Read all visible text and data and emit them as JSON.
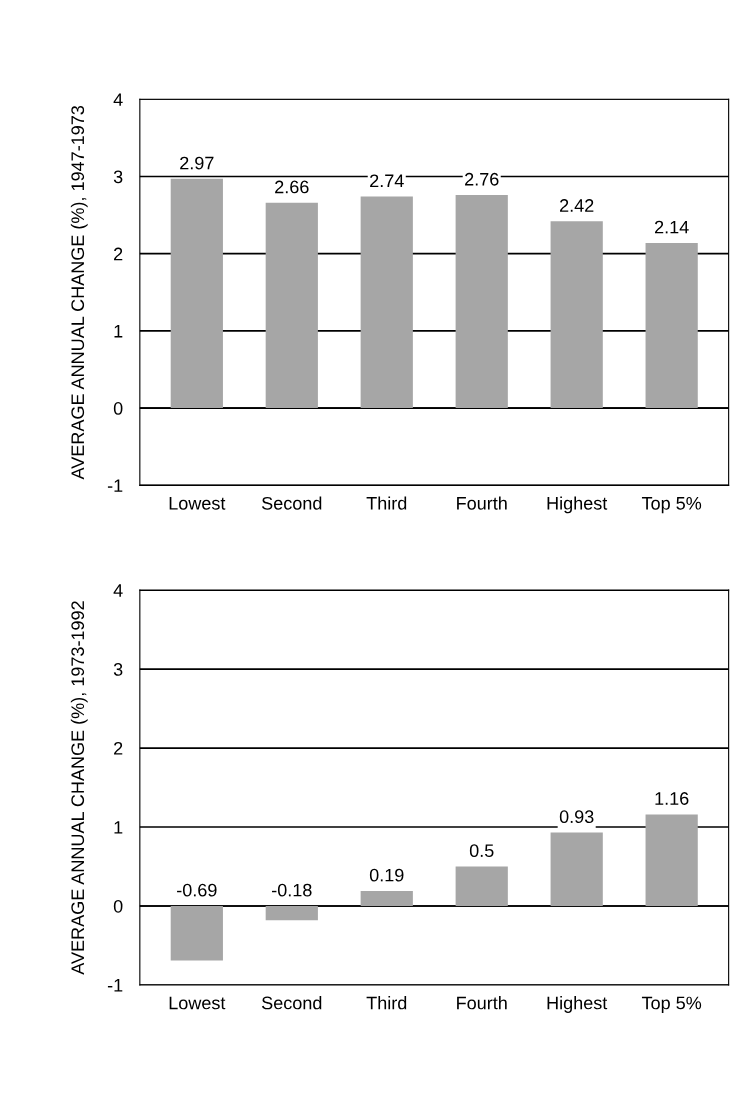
{
  "chart_data": [
    {
      "type": "bar",
      "ylabel": "AVERAGE ANNUAL CHANGE (%), 1947-1973",
      "categories": [
        "Lowest",
        "Second",
        "Third",
        "Fourth",
        "Highest",
        "Top 5%"
      ],
      "values": [
        2.97,
        2.66,
        2.74,
        2.76,
        2.42,
        2.14
      ],
      "color": "#a6a6a6",
      "ylim": [
        -1,
        4
      ],
      "yticks": [
        -1,
        0,
        1,
        2,
        3,
        4
      ],
      "grid": "y",
      "data_labels": true
    },
    {
      "type": "bar",
      "ylabel": "AVERAGE ANNUAL CHANGE (%), 1973-1992",
      "categories": [
        "Lowest",
        "Second",
        "Third",
        "Fourth",
        "Highest",
        "Top 5%"
      ],
      "values": [
        -0.69,
        -0.18,
        0.19,
        0.5,
        0.93,
        1.16
      ],
      "color": "#a6a6a6",
      "ylim": [
        -1,
        4
      ],
      "yticks": [
        -1,
        0,
        1,
        2,
        3,
        4
      ],
      "grid": "y",
      "data_labels": true
    }
  ]
}
